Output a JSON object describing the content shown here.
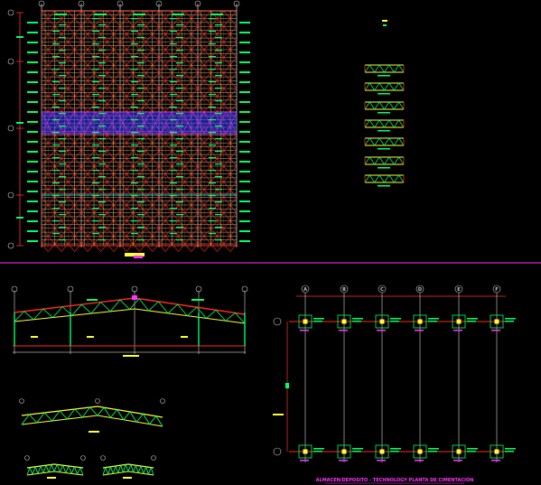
{
  "colors": {
    "background": "#000000",
    "grid": "#ffffff",
    "truss": "#ff2a1a",
    "member": "#ffff33",
    "label": "#00ff66",
    "bracing": "#2b3bff",
    "highlight": "#ff33ff",
    "axis": "#c8c8c8",
    "dim": "#ff3333"
  },
  "foundation_plan": {
    "title": "ALMACEN/DEPOSITO - TECHNOLOGY PLANTA DE CIMENTACION",
    "axes_letters": [
      "A",
      "B",
      "C",
      "D",
      "E",
      "F"
    ]
  },
  "icons": {
    "column_marker": "column-marker-icon",
    "axis_bubble": "axis-bubble-icon"
  }
}
